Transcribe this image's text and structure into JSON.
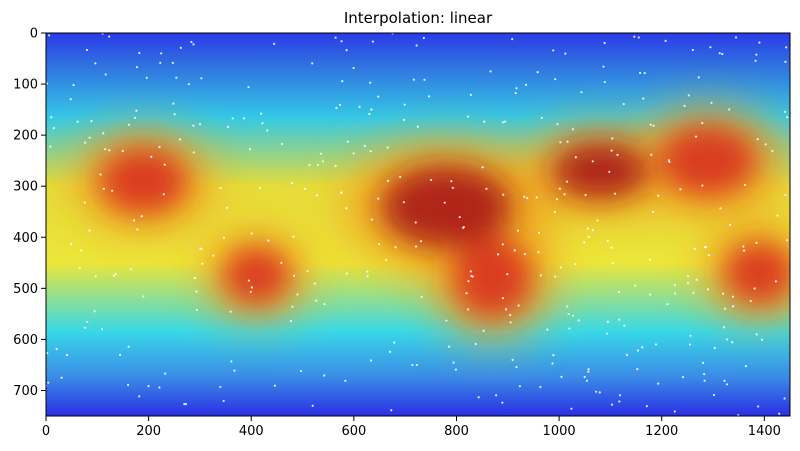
{
  "chart_data": {
    "type": "heatmap",
    "title": "Interpolation: linear",
    "xlabel": "",
    "ylabel": "",
    "xlim": [
      0,
      1450
    ],
    "ylim": [
      750,
      0
    ],
    "x_ticks": [
      0,
      200,
      400,
      600,
      800,
      1000,
      1200,
      1400
    ],
    "y_ticks": [
      0,
      100,
      200,
      300,
      400,
      500,
      600,
      700
    ],
    "colormap": "jet-like (blue low, red high)",
    "grid": false,
    "legend": "none",
    "hotspots": [
      {
        "x": 190,
        "y": 290,
        "rx": 100,
        "ry": 75,
        "level": "high"
      },
      {
        "x": 410,
        "y": 475,
        "rx": 75,
        "ry": 65,
        "level": "high"
      },
      {
        "x": 780,
        "y": 340,
        "rx": 150,
        "ry": 95,
        "level": "very high"
      },
      {
        "x": 870,
        "y": 480,
        "rx": 90,
        "ry": 90,
        "level": "high"
      },
      {
        "x": 1080,
        "y": 270,
        "rx": 110,
        "ry": 65,
        "level": "very high"
      },
      {
        "x": 1290,
        "y": 250,
        "rx": 110,
        "ry": 80,
        "level": "high"
      },
      {
        "x": 1390,
        "y": 470,
        "rx": 80,
        "ry": 70,
        "level": "high"
      }
    ],
    "sample_point_count": 400,
    "sample_point_color": "#ffffff"
  }
}
